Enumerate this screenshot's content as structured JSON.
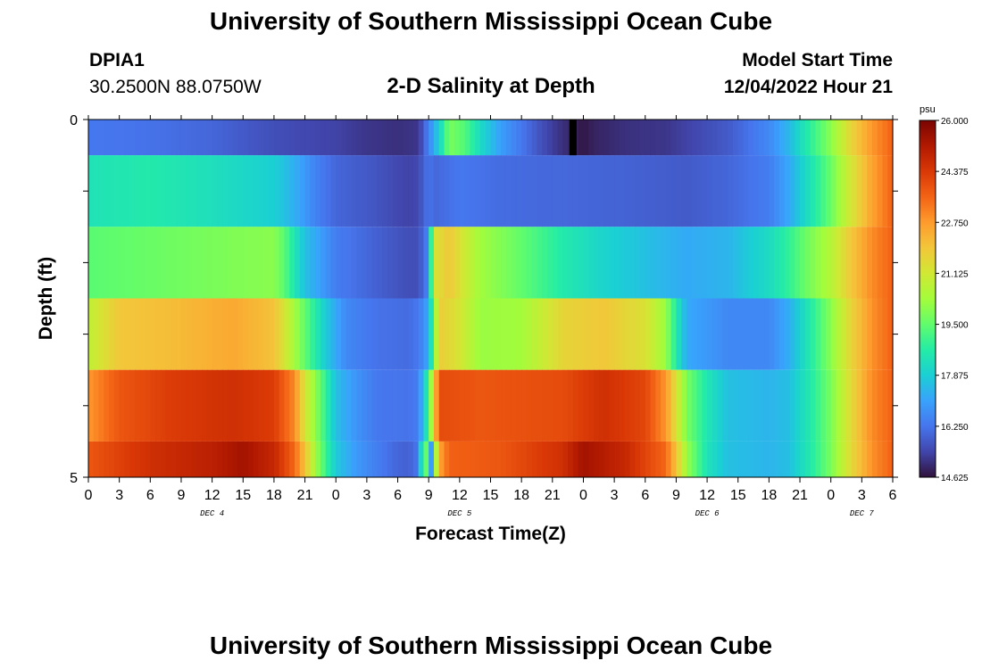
{
  "page": {
    "title": "University of Southern Mississippi Ocean Cube",
    "footer_title": "University of Southern Mississippi Ocean Cube",
    "station": "DPIA1",
    "coordinates": "30.2500N  88.0750W",
    "subtitle": "2-D Salinity at Depth",
    "model_start_label": "Model Start Time",
    "model_start_value": "12/04/2022 Hour 21"
  },
  "colors": {
    "background": "#ffffff",
    "colormap": [
      "#30123b",
      "#4145ab",
      "#4675ed",
      "#39a2fc",
      "#1bcfd4",
      "#24eca6",
      "#61fc6c",
      "#a4fc3b",
      "#d1e834",
      "#f3c63a",
      "#fe9b2d",
      "#f36315",
      "#d93806",
      "#b11901",
      "#7a0402"
    ]
  },
  "chart_data": {
    "type": "heatmap",
    "xlabel": "Forecast Time(Z)",
    "ylabel": "Depth (ft)",
    "x_tick_labels": [
      "0",
      "3",
      "6",
      "9",
      "12",
      "15",
      "18",
      "21",
      "0",
      "3",
      "6",
      "9",
      "12",
      "15",
      "18",
      "21",
      "0",
      "3",
      "6",
      "9",
      "12",
      "15",
      "18",
      "21",
      "0",
      "3",
      "6"
    ],
    "day_labels": [
      {
        "label": "DEC 4",
        "hour": 12
      },
      {
        "label": "DEC 5",
        "hour": 36
      },
      {
        "label": "DEC 6",
        "hour": 60
      },
      {
        "label": "DEC 7",
        "hour": 75
      }
    ],
    "x_range_hours": [
      0,
      78
    ],
    "y_range_ft": [
      0,
      5
    ],
    "y_tick_labels": [
      "0",
      "5"
    ],
    "depth_rows_ft": [
      0,
      1,
      2,
      3,
      4,
      5
    ],
    "colorbar": {
      "unit": "psu",
      "min": 14.625,
      "max": 26.0,
      "tick_labels": [
        "26.000",
        "24.375",
        "22.750",
        "21.125",
        "19.500",
        "17.875",
        "16.250",
        "14.625"
      ]
    },
    "series": [
      {
        "name": "0 ft",
        "keyframes": [
          [
            0,
            16.3
          ],
          [
            6,
            16.2
          ],
          [
            12,
            16.0
          ],
          [
            18,
            15.6
          ],
          [
            24,
            15.4
          ],
          [
            27,
            15.2
          ],
          [
            30,
            15.1
          ],
          [
            32,
            15.2
          ],
          [
            33,
            16.5
          ],
          [
            34,
            17.9
          ],
          [
            35,
            19.8
          ],
          [
            36.5,
            19.3
          ],
          [
            38,
            18.2
          ],
          [
            40,
            17.0
          ],
          [
            42,
            16.3
          ],
          [
            44,
            15.6
          ],
          [
            45.5,
            15.2
          ],
          [
            47,
            14.9
          ],
          [
            48,
            14.7
          ],
          [
            49,
            14.9
          ],
          [
            52,
            15.1
          ],
          [
            56,
            15.2
          ],
          [
            58,
            15.4
          ],
          [
            62,
            15.8
          ],
          [
            66,
            16.6
          ],
          [
            68,
            17.5
          ],
          [
            70,
            18.8
          ],
          [
            72,
            20.0
          ],
          [
            74,
            21.6
          ],
          [
            76,
            22.8
          ],
          [
            78,
            23.6
          ]
        ]
      },
      {
        "name": "1 ft",
        "keyframes": [
          [
            0,
            18.4
          ],
          [
            6,
            18.6
          ],
          [
            12,
            18.3
          ],
          [
            18,
            17.9
          ],
          [
            20,
            17.3
          ],
          [
            22,
            16.5
          ],
          [
            24,
            16.0
          ],
          [
            28,
            15.7
          ],
          [
            31,
            15.4
          ],
          [
            32,
            15.5
          ],
          [
            33,
            16.3
          ],
          [
            33.5,
            16.0
          ],
          [
            36,
            16.3
          ],
          [
            40,
            16.1
          ],
          [
            48,
            16.0
          ],
          [
            54,
            15.9
          ],
          [
            58,
            15.8
          ],
          [
            62,
            16.0
          ],
          [
            66,
            16.4
          ],
          [
            68,
            17.2
          ],
          [
            70,
            18.4
          ],
          [
            72,
            19.6
          ],
          [
            74,
            21.2
          ],
          [
            76,
            22.6
          ],
          [
            78,
            23.6
          ]
        ]
      },
      {
        "name": "2 ft",
        "keyframes": [
          [
            0,
            19.4
          ],
          [
            6,
            19.6
          ],
          [
            12,
            19.8
          ],
          [
            18,
            20.0
          ],
          [
            19,
            19.4
          ],
          [
            21,
            17.6
          ],
          [
            24,
            16.4
          ],
          [
            28,
            15.9
          ],
          [
            31,
            15.6
          ],
          [
            32,
            15.6
          ],
          [
            33,
            16.6
          ],
          [
            33.5,
            21.2
          ],
          [
            35,
            21.9
          ],
          [
            36,
            21.3
          ],
          [
            38,
            20.3
          ],
          [
            42,
            19.5
          ],
          [
            46,
            18.6
          ],
          [
            50,
            18.0
          ],
          [
            54,
            17.6
          ],
          [
            58,
            17.2
          ],
          [
            62,
            17.4
          ],
          [
            64,
            17.8
          ],
          [
            66,
            18.2
          ],
          [
            68,
            18.9
          ],
          [
            70,
            19.8
          ],
          [
            72,
            20.6
          ],
          [
            74,
            21.9
          ],
          [
            76,
            23.0
          ],
          [
            78,
            23.6
          ]
        ]
      },
      {
        "name": "3 ft",
        "keyframes": [
          [
            0,
            20.8
          ],
          [
            3,
            21.9
          ],
          [
            8,
            22.1
          ],
          [
            14,
            22.5
          ],
          [
            18,
            22.0
          ],
          [
            19,
            21.2
          ],
          [
            21,
            19.5
          ],
          [
            23,
            17.8
          ],
          [
            25,
            16.6
          ],
          [
            28,
            16.2
          ],
          [
            31,
            16.1
          ],
          [
            32,
            16.3
          ],
          [
            33,
            17.2
          ],
          [
            34,
            21.8
          ],
          [
            36,
            21.2
          ],
          [
            38,
            20.2
          ],
          [
            42,
            20.3
          ],
          [
            46,
            21.6
          ],
          [
            50,
            21.9
          ],
          [
            54,
            21.3
          ],
          [
            56,
            20.2
          ],
          [
            57,
            18.6
          ],
          [
            58,
            17.2
          ],
          [
            62,
            16.6
          ],
          [
            66,
            16.6
          ],
          [
            68,
            17.3
          ],
          [
            70,
            18.6
          ],
          [
            72,
            20.0
          ],
          [
            74,
            21.6
          ],
          [
            76,
            22.9
          ],
          [
            78,
            23.6
          ]
        ]
      },
      {
        "name": "4 ft",
        "keyframes": [
          [
            0,
            22.8
          ],
          [
            3,
            23.8
          ],
          [
            8,
            24.3
          ],
          [
            14,
            24.6
          ],
          [
            18,
            24.3
          ],
          [
            20,
            23.0
          ],
          [
            21,
            21.2
          ],
          [
            22.5,
            19.5
          ],
          [
            24,
            17.6
          ],
          [
            26,
            16.8
          ],
          [
            28,
            16.3
          ],
          [
            31,
            16.2
          ],
          [
            32,
            16.4
          ],
          [
            33,
            19.0
          ],
          [
            34,
            24.0
          ],
          [
            38,
            23.8
          ],
          [
            46,
            24.0
          ],
          [
            50,
            24.6
          ],
          [
            54,
            24.1
          ],
          [
            56,
            22.8
          ],
          [
            57,
            21.3
          ],
          [
            58,
            19.8
          ],
          [
            60,
            18.5
          ],
          [
            62,
            17.6
          ],
          [
            66,
            17.4
          ],
          [
            68,
            17.6
          ],
          [
            70,
            18.6
          ],
          [
            72,
            19.8
          ],
          [
            74,
            21.5
          ],
          [
            76,
            23.0
          ],
          [
            78,
            23.6
          ]
        ]
      },
      {
        "name": "5 ft",
        "keyframes": [
          [
            0,
            23.8
          ],
          [
            6,
            24.6
          ],
          [
            12,
            25.0
          ],
          [
            15,
            25.4
          ],
          [
            18,
            24.8
          ],
          [
            20,
            23.5
          ],
          [
            21,
            22.0
          ],
          [
            22,
            20.3
          ],
          [
            23,
            19.0
          ],
          [
            24,
            17.8
          ],
          [
            26,
            16.9
          ],
          [
            28,
            16.4
          ],
          [
            30,
            16.0
          ],
          [
            31,
            15.9
          ],
          [
            32,
            16.3
          ],
          [
            32.6,
            20.5
          ],
          [
            33.2,
            16.6
          ],
          [
            34,
            22.5
          ],
          [
            35,
            23.6
          ],
          [
            40,
            23.8
          ],
          [
            46,
            24.6
          ],
          [
            48,
            25.4
          ],
          [
            52,
            24.8
          ],
          [
            56,
            23.5
          ],
          [
            57,
            22.0
          ],
          [
            58,
            20.2
          ],
          [
            60,
            18.4
          ],
          [
            62,
            17.6
          ],
          [
            66,
            17.4
          ],
          [
            68,
            17.6
          ],
          [
            70,
            18.6
          ],
          [
            72,
            19.8
          ],
          [
            74,
            21.5
          ],
          [
            76,
            22.9
          ],
          [
            78,
            23.6
          ]
        ]
      }
    ],
    "missing_data_bars": [
      {
        "depth_ft": 0,
        "hour": 47
      }
    ]
  }
}
